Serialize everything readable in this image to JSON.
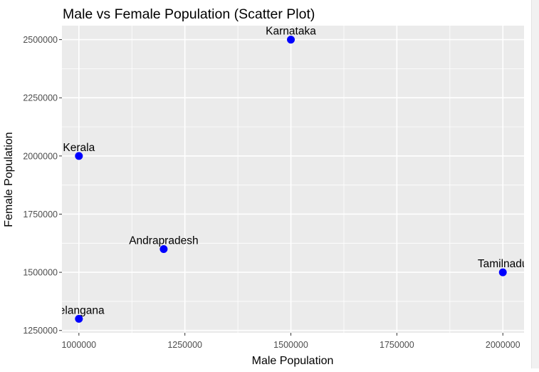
{
  "chart_data": {
    "type": "scatter",
    "title": "Male vs Female Population (Scatter Plot)",
    "xlabel": "Male Population",
    "ylabel": "Female Population",
    "xlim": [
      960000,
      2050000
    ],
    "ylim": [
      1240000,
      2560000
    ],
    "x_ticks": [
      1000000,
      1250000,
      1500000,
      1750000,
      2000000
    ],
    "y_ticks": [
      1250000,
      1500000,
      1750000,
      2000000,
      2250000,
      2500000
    ],
    "x_tick_labels": [
      "1000000",
      "1250000",
      "1500000",
      "1750000",
      "2000000"
    ],
    "y_tick_labels": [
      "1250000",
      "1500000",
      "1750000",
      "2000000",
      "2250000",
      "2500000"
    ],
    "grid": true,
    "point_color": "#0000ff",
    "panel_color": "#ebebeb",
    "grid_color": "#ffffff",
    "points": [
      {
        "label": "Karnataka",
        "x": 1500000,
        "y": 2500000
      },
      {
        "label": "Kerala",
        "x": 1000000,
        "y": 2000000
      },
      {
        "label": "Andrapradesh",
        "x": 1200000,
        "y": 1600000
      },
      {
        "label": "Tamilnadu",
        "x": 2000000,
        "y": 1500000
      },
      {
        "label": "Telangana",
        "x": 1000000,
        "y": 1300000
      }
    ]
  }
}
